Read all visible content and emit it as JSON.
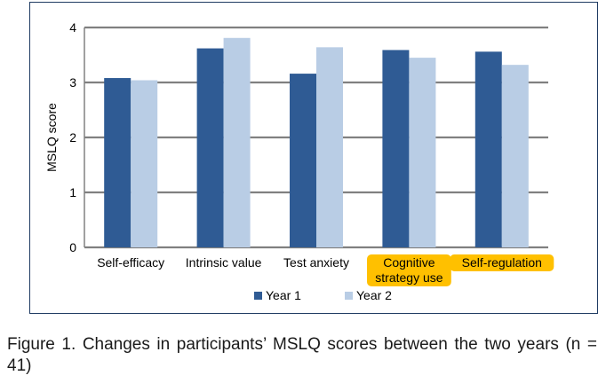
{
  "chart_data": {
    "type": "bar",
    "categories": [
      "Self-efficacy",
      "Intrinsic value",
      "Test anxiety",
      "Cognitive strategy use",
      "Self-regulation"
    ],
    "category_label_lines": [
      [
        "Self-efficacy"
      ],
      [
        "Intrinsic value"
      ],
      [
        "Test anxiety"
      ],
      [
        "Cognitive",
        "strategy use"
      ],
      [
        "Self-regulation"
      ]
    ],
    "highlighted_categories": [
      "Cognitive strategy use",
      "Self-regulation"
    ],
    "series": [
      {
        "name": "Year 1",
        "values": [
          3.08,
          3.62,
          3.16,
          3.59,
          3.56
        ]
      },
      {
        "name": "Year 2",
        "values": [
          3.04,
          3.81,
          3.64,
          3.45,
          3.32
        ]
      }
    ],
    "title": "",
    "xlabel": "",
    "ylabel": "MSLQ score",
    "ylim": [
      0,
      4
    ],
    "yticks": [
      0,
      1,
      2,
      3,
      4
    ],
    "grid": true,
    "legend_position": "bottom-center",
    "colors": {
      "series": [
        "#2f5b94",
        "#b9cde5"
      ],
      "highlight": "#ffc000",
      "grid": "#808080",
      "frame": "#1f3b62"
    }
  },
  "caption": "Figure 1. Changes in participants’ MSLQ scores between the two years (n = 41)"
}
